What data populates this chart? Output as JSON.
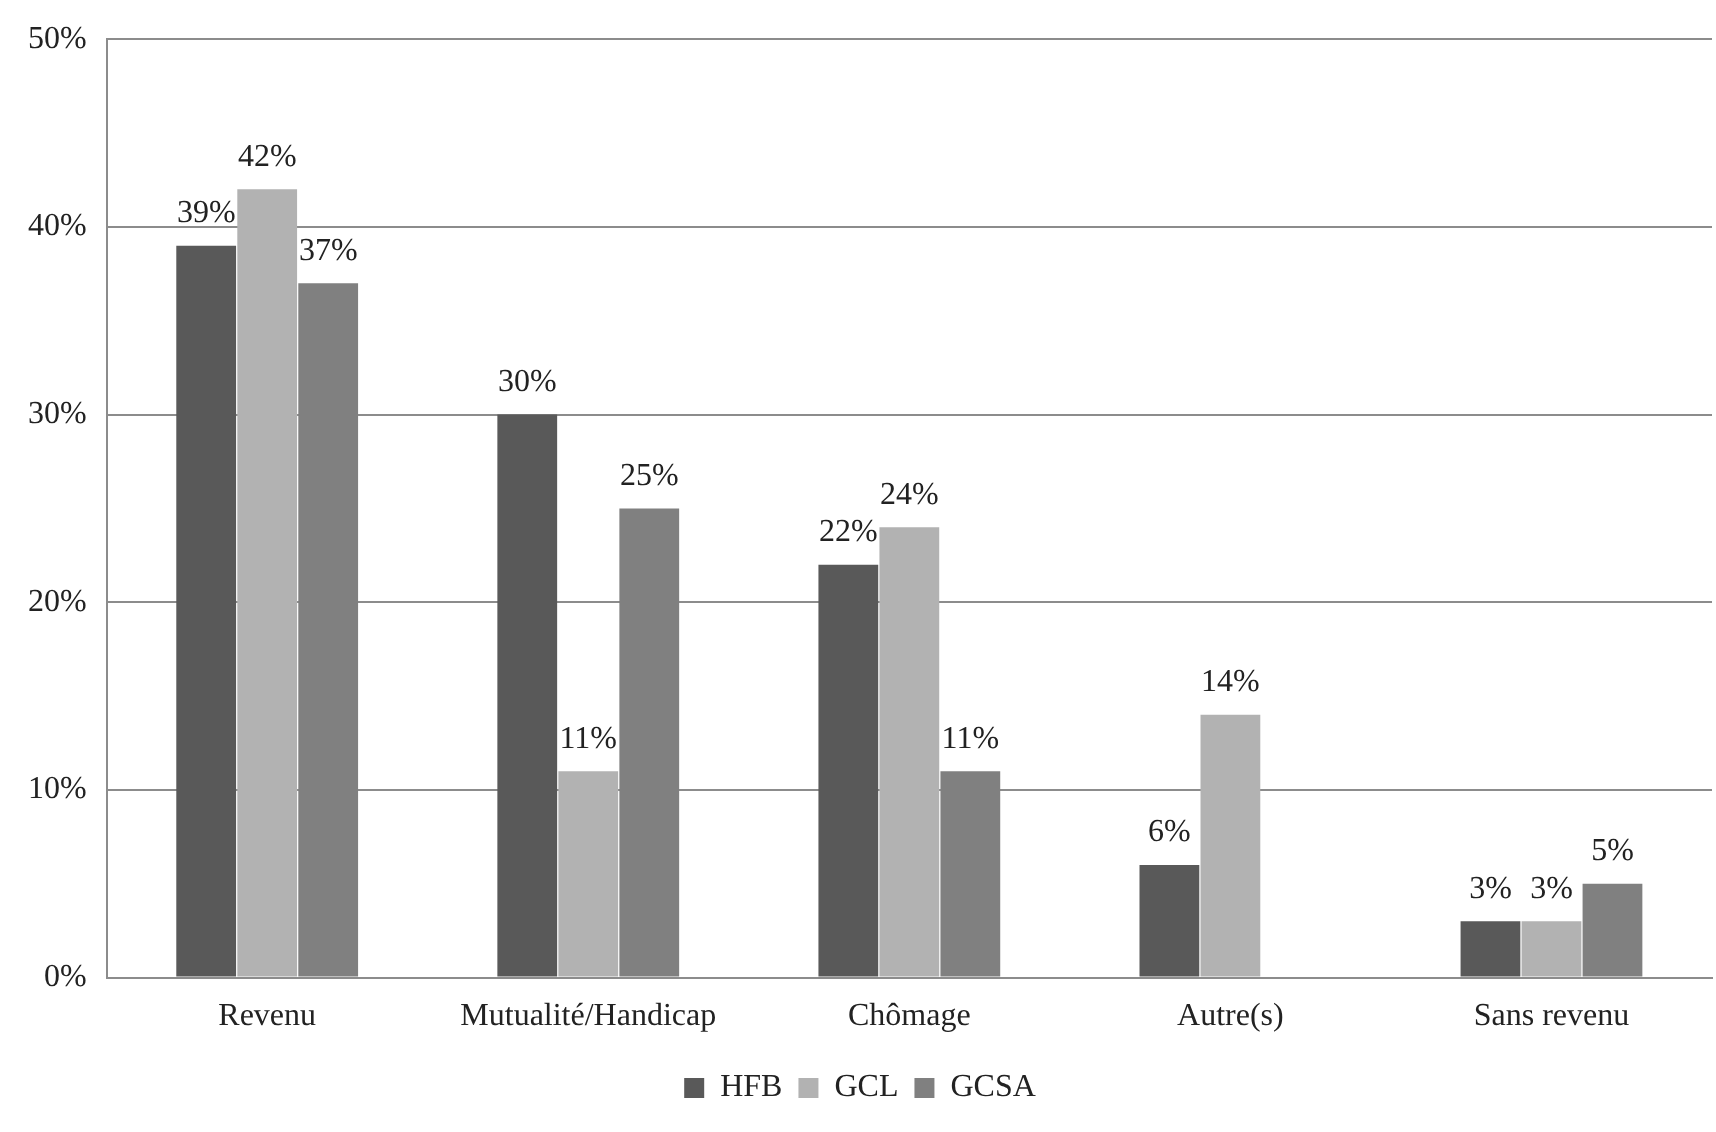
{
  "chart_data": {
    "type": "bar",
    "categories": [
      "Revenu",
      "Mutualité/Handicap",
      "Chômage",
      "Autre(s)",
      "Sans revenu"
    ],
    "series": [
      {
        "name": "HFB",
        "color": "#595959",
        "values": [
          39,
          30,
          22,
          6,
          3
        ],
        "value_labels": [
          "39%",
          "30%",
          "22%",
          "6%",
          "3%"
        ]
      },
      {
        "name": "GCL",
        "color": "#b2b2b2",
        "values": [
          42,
          11,
          24,
          14,
          3
        ],
        "value_labels": [
          "42%",
          "11%",
          "24%",
          "14%",
          "3%"
        ]
      },
      {
        "name": "GCSA",
        "color": "#808080",
        "values": [
          37,
          25,
          11,
          null,
          5
        ],
        "value_labels": [
          "37%",
          "25%",
          "11%",
          null,
          "5%"
        ]
      }
    ],
    "ylim": [
      0,
      50
    ],
    "yticks": [
      {
        "value": 0,
        "label": "0%"
      },
      {
        "value": 10,
        "label": "10%"
      },
      {
        "value": 20,
        "label": "20%"
      },
      {
        "value": 30,
        "label": "30%"
      },
      {
        "value": 40,
        "label": "40%"
      },
      {
        "value": 50,
        "label": "50%"
      }
    ],
    "grid": "y",
    "legend": "bottom"
  }
}
